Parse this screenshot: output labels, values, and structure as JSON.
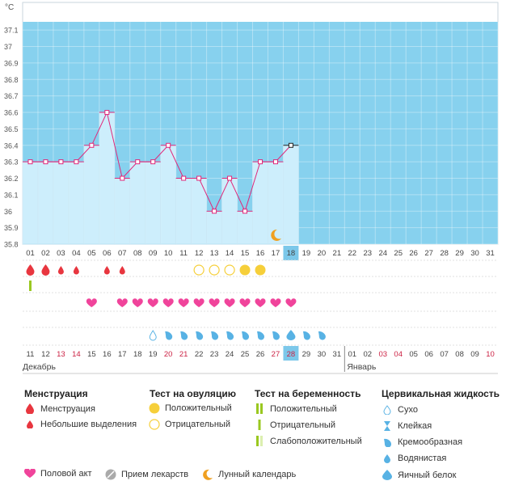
{
  "chart_data": {
    "type": "line",
    "unit_label": "°C",
    "ylim": [
      35.8,
      37.15
    ],
    "y_ticks": [
      "35.8",
      "35.9",
      "36",
      "36.1",
      "36.2",
      "36.3",
      "36.4",
      "36.5",
      "36.6",
      "36.7",
      "36.8",
      "36.9",
      "37",
      "37.1"
    ],
    "cycle_days": [
      "01",
      "02",
      "03",
      "04",
      "05",
      "06",
      "07",
      "08",
      "09",
      "10",
      "11",
      "12",
      "13",
      "14",
      "15",
      "16",
      "17",
      "18",
      "19",
      "20",
      "21",
      "22",
      "23",
      "24",
      "25",
      "26",
      "27",
      "28",
      "29",
      "30",
      "31"
    ],
    "current_day": "18",
    "series": [
      {
        "values": [
          36.3,
          36.3,
          36.3,
          36.3,
          36.4,
          36.6,
          36.2,
          36.3,
          36.3,
          36.4,
          36.2,
          36.2,
          36.0,
          36.2,
          36.0,
          36.3,
          36.3,
          36.4
        ]
      }
    ],
    "grid": true
  },
  "calendar": {
    "dates": [
      {
        "d": "11",
        "weekend": false
      },
      {
        "d": "12",
        "weekend": false
      },
      {
        "d": "13",
        "weekend": true
      },
      {
        "d": "14",
        "weekend": true
      },
      {
        "d": "15",
        "weekend": false
      },
      {
        "d": "16",
        "weekend": false
      },
      {
        "d": "17",
        "weekend": false
      },
      {
        "d": "18",
        "weekend": false
      },
      {
        "d": "19",
        "weekend": false
      },
      {
        "d": "20",
        "weekend": true
      },
      {
        "d": "21",
        "weekend": true
      },
      {
        "d": "22",
        "weekend": false
      },
      {
        "d": "23",
        "weekend": false
      },
      {
        "d": "24",
        "weekend": false
      },
      {
        "d": "25",
        "weekend": false
      },
      {
        "d": "26",
        "weekend": false
      },
      {
        "d": "27",
        "weekend": true
      },
      {
        "d": "28",
        "weekend": true
      },
      {
        "d": "29",
        "weekend": false
      },
      {
        "d": "30",
        "weekend": false
      },
      {
        "d": "31",
        "weekend": false
      },
      {
        "d": "01",
        "weekend": false
      },
      {
        "d": "02",
        "weekend": false
      },
      {
        "d": "03",
        "weekend": true
      },
      {
        "d": "04",
        "weekend": true
      },
      {
        "d": "05",
        "weekend": false
      },
      {
        "d": "06",
        "weekend": false
      },
      {
        "d": "07",
        "weekend": false
      },
      {
        "d": "08",
        "weekend": false
      },
      {
        "d": "09",
        "weekend": false
      },
      {
        "d": "10",
        "weekend": true
      }
    ],
    "highlight_index": 17,
    "month1": "Декабрь",
    "month2": "Январь"
  },
  "rows": {
    "menstruation": [
      "big",
      "big",
      "small",
      "small",
      "",
      "small",
      "small"
    ],
    "pregnancy_test": [
      "positive"
    ],
    "ovulation_test": {
      "11": "negative",
      "12": "negative",
      "13": "negative",
      "14": "positive",
      "15": "positive"
    },
    "intercourse_days": [
      4,
      6,
      7,
      8,
      9,
      10,
      11,
      12,
      13,
      14,
      15,
      16,
      17
    ],
    "cervical": {
      "8": "dry",
      "9": "watery",
      "10": "watery",
      "11": "watery",
      "12": "watery",
      "13": "watery",
      "14": "watery",
      "15": "watery",
      "16": "watery",
      "17": "eggwhite",
      "18": "watery",
      "19": "watery"
    },
    "moon_day": 16
  },
  "legend": {
    "menstruation": {
      "title": "Менструация",
      "items": [
        "Менструация",
        "Небольшие выделения"
      ]
    },
    "ovulation": {
      "title": "Тест на овуляцию",
      "items": [
        "Положительный",
        "Отрицательный"
      ]
    },
    "pregnancy": {
      "title": "Тест на беременность",
      "items": [
        "Положительный",
        "Отрицательный",
        "Слабоположительный"
      ]
    },
    "cervical": {
      "title": "Цервикальная жидкость",
      "items": [
        "Сухо",
        "Клейкая",
        "Кремообразная",
        "Водянистая",
        "Яичный белок"
      ]
    },
    "bottom": [
      "Половой акт",
      "Прием лекарств",
      "Лунный календарь"
    ]
  },
  "colors": {
    "sky": "#87d1ee",
    "bar": "#cdeefc",
    "line": "#e0287a",
    "red": "#e8363f",
    "yellow": "#f6cf3a",
    "green": "#9ac820",
    "pink": "#f0449b",
    "drop": "#58b2e4"
  }
}
